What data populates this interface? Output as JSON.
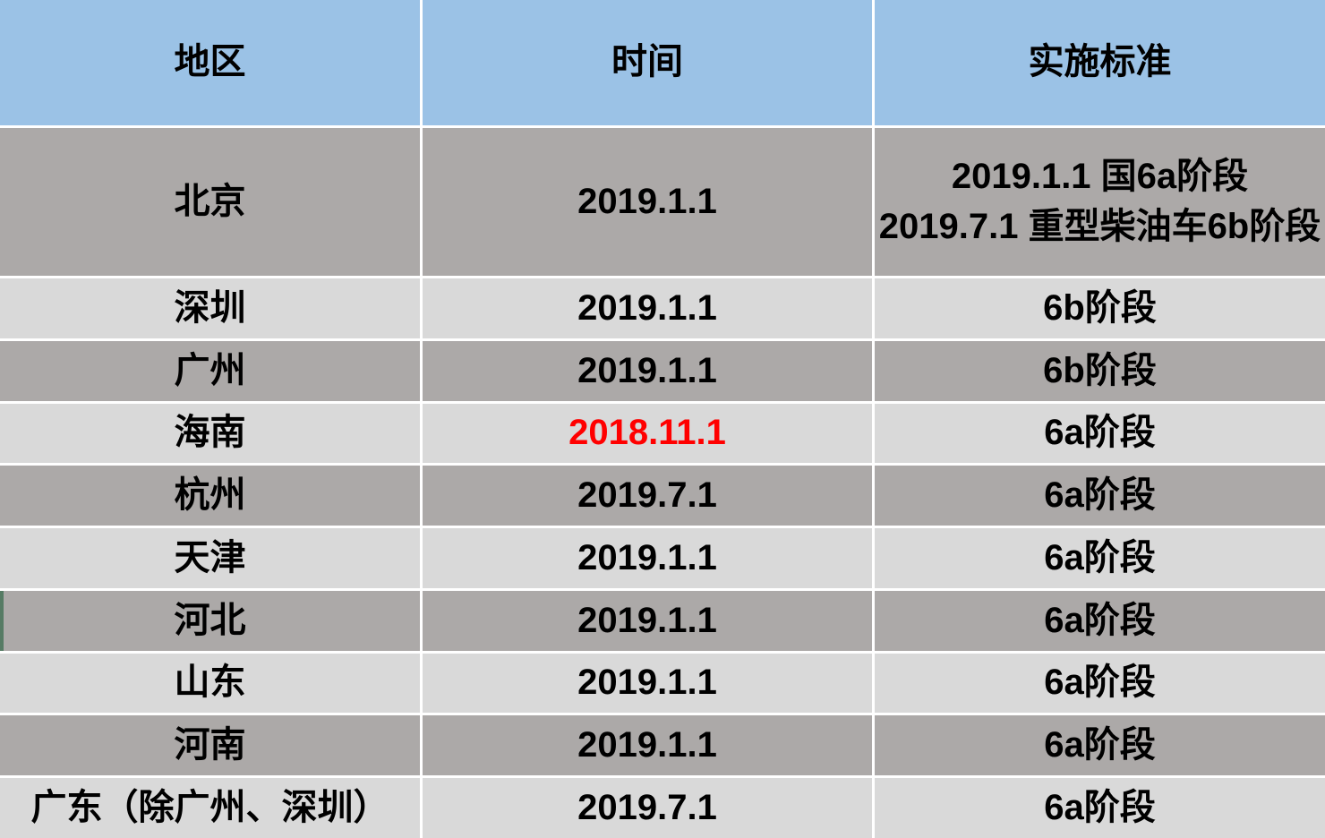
{
  "colors": {
    "header_bg": "#9BC2E6",
    "row_dark": "#ACA9A8",
    "row_light": "#D9D9D9",
    "gridline": "#FFFFFF",
    "text": "#000000",
    "time_highlight": "#FF0000",
    "left_marker_green": "#567B64"
  },
  "table": {
    "columns": [
      {
        "label": "地区"
      },
      {
        "label": "时间"
      },
      {
        "label": "实施标准"
      }
    ],
    "rows": [
      {
        "region": "北京",
        "time": "2019.1.1",
        "standard": "2019.1.1 国6a阶段\n2019.7.1 重型柴油车6b阶段"
      },
      {
        "region": "深圳",
        "time": "2019.1.1",
        "standard": "6b阶段"
      },
      {
        "region": "广州",
        "time": "2019.1.1",
        "standard": "6b阶段"
      },
      {
        "region": "海南",
        "time": "2018.11.1",
        "standard": "6a阶段",
        "time_highlight": true
      },
      {
        "region": "杭州",
        "time": "2019.7.1",
        "standard": "6a阶段"
      },
      {
        "region": "天津",
        "time": "2019.1.1",
        "standard": "6a阶段"
      },
      {
        "region": "河北",
        "time": "2019.1.1",
        "standard": "6a阶段",
        "left_marker": true
      },
      {
        "region": "山东",
        "time": "2019.1.1",
        "standard": "6a阶段"
      },
      {
        "region": "河南",
        "time": "2019.1.1",
        "standard": "6a阶段"
      },
      {
        "region": "广东（除广州、深圳）",
        "time": "2019.7.1",
        "standard": "6a阶段"
      }
    ]
  }
}
